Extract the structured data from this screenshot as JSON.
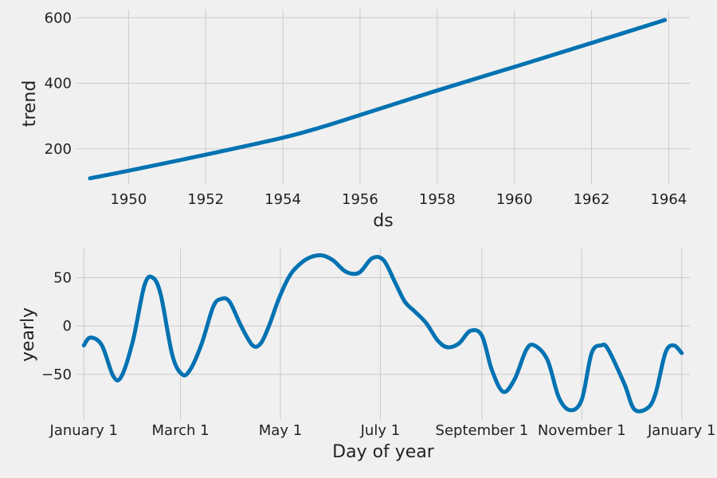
{
  "chart_data": [
    {
      "type": "line",
      "title": "",
      "xlabel": "ds",
      "ylabel": "trend",
      "xlim": [
        1948.65,
        1964.55
      ],
      "ylim": [
        90,
        625
      ],
      "xticks": [
        1950,
        1952,
        1954,
        1956,
        1958,
        1960,
        1962,
        1964
      ],
      "xtick_labels": [
        "1950",
        "1952",
        "1954",
        "1956",
        "1958",
        "1960",
        "1962",
        "1964"
      ],
      "yticks": [
        200,
        400,
        600
      ],
      "ytick_labels": [
        "200",
        "400",
        "600"
      ],
      "grid": true,
      "series": [
        {
          "name": "trend",
          "x": [
            1949.0,
            1950.0,
            1952.0,
            1954.0,
            1955.0,
            1956.0,
            1958.0,
            1960.0,
            1962.0,
            1963.9
          ],
          "values": [
            110,
            133,
            182,
            234,
            266,
            303,
            378,
            450,
            523,
            593
          ]
        }
      ]
    },
    {
      "type": "line",
      "title": "",
      "xlabel": "Day of year",
      "ylabel": "yearly",
      "xlim": [
        -4.5,
        370
      ],
      "ylim": [
        -97,
        80
      ],
      "xticks": [
        0,
        59,
        120,
        181,
        243,
        304,
        365
      ],
      "xtick_labels": [
        "January 1",
        "March 1",
        "May 1",
        "July 1",
        "September 1",
        "November 1",
        "January 1"
      ],
      "yticks": [
        50,
        0,
        -50
      ],
      "ytick_labels": [
        "50",
        "0",
        "−50"
      ],
      "grid": true,
      "series": [
        {
          "name": "yearly",
          "x": [
            0,
            4,
            11,
            18,
            23,
            30,
            37,
            42,
            47,
            54,
            60,
            65,
            72,
            79,
            84,
            89,
            96,
            103,
            108,
            113,
            119,
            125,
            130,
            137,
            145,
            152,
            160,
            168,
            176,
            183,
            190,
            196,
            202,
            209,
            216,
            222,
            229,
            236,
            243,
            249,
            256,
            263,
            270,
            275,
            283,
            290,
            297,
            304,
            310,
            316,
            320,
            330,
            336,
            344,
            349,
            355,
            360,
            365
          ],
          "values": [
            -20,
            -12,
            -20,
            -52,
            -52,
            -15,
            42,
            50,
            32,
            -30,
            -50,
            -45,
            -18,
            20,
            28,
            25,
            0,
            -20,
            -18,
            0,
            28,
            50,
            61,
            70,
            73,
            68,
            56,
            55,
            70,
            68,
            45,
            25,
            15,
            3,
            -15,
            -22,
            -18,
            -5,
            -10,
            -45,
            -68,
            -55,
            -25,
            -20,
            -35,
            -74,
            -87,
            -76,
            -28,
            -20,
            -24,
            -60,
            -86,
            -85,
            -70,
            -28,
            -20,
            -28
          ]
        }
      ]
    }
  ]
}
